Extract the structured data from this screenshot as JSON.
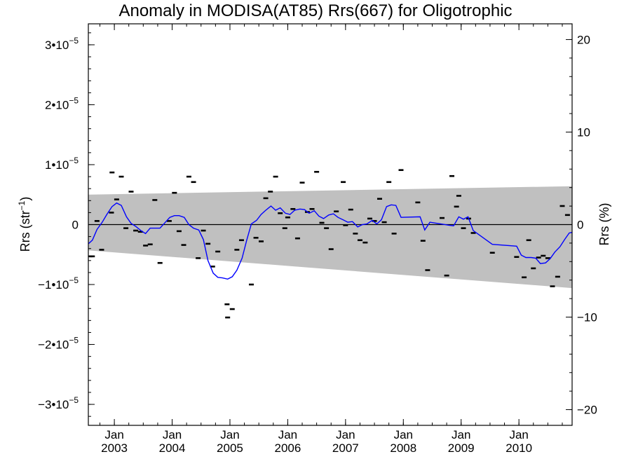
{
  "chart_data": {
    "type": "scatter",
    "title": "Anomaly in MODISA(AT85) Rrs(667) for Oligotrophic",
    "ylabel_left": "Rrs (str⁻¹)",
    "ylabel_right": "Rrs (%)",
    "ylim_left": [
      -3.35e-05,
      3.35e-05
    ],
    "ylim_right": [
      -21.7,
      21.7
    ],
    "xlim": [
      2002.55,
      2010.92
    ],
    "grid": false,
    "y_ticks_left": [
      {
        "value": 3e-05,
        "mantissa": "3",
        "sign": ""
      },
      {
        "value": 2e-05,
        "mantissa": "2",
        "sign": ""
      },
      {
        "value": 1e-05,
        "mantissa": "1",
        "sign": ""
      },
      {
        "value": 0,
        "mantissa": "0",
        "sign": "",
        "plain": true
      },
      {
        "value": -1e-05,
        "mantissa": "1",
        "sign": "−"
      },
      {
        "value": -2e-05,
        "mantissa": "2",
        "sign": "−"
      },
      {
        "value": -3e-05,
        "mantissa": "3",
        "sign": "−"
      }
    ],
    "y_tick_base": "•10",
    "y_tick_exp": "−5",
    "y_ticks_right": [
      {
        "value": 20,
        "label": "20"
      },
      {
        "value": 10,
        "label": "10"
      },
      {
        "value": 0,
        "label": "0"
      },
      {
        "value": -10,
        "label": "−10"
      },
      {
        "value": -20,
        "label": "−20"
      }
    ],
    "x_ticks": [
      {
        "value": 2003.0,
        "month": "Jan",
        "year": "2003"
      },
      {
        "value": 2004.0,
        "month": "Jan",
        "year": "2004"
      },
      {
        "value": 2005.0,
        "month": "Jan",
        "year": "2005"
      },
      {
        "value": 2006.0,
        "month": "Jan",
        "year": "2006"
      },
      {
        "value": 2007.0,
        "month": "Jan",
        "year": "2007"
      },
      {
        "value": 2008.0,
        "month": "Jan",
        "year": "2008"
      },
      {
        "value": 2009.0,
        "month": "Jan",
        "year": "2009"
      },
      {
        "value": 2010.0,
        "month": "Jan",
        "year": "2010"
      }
    ],
    "band": {
      "x": [
        2002.55,
        2010.92
      ],
      "upper": [
        5e-06,
        6.4e-06
      ],
      "lower": [
        -4.3e-06,
        -1.06e-05
      ],
      "color": "#c0c0c0"
    },
    "points": [
      [
        2002.58,
        -5.3e-06
      ],
      [
        2002.62,
        -5.3e-06
      ],
      [
        2002.7,
        6e-07
      ],
      [
        2002.78,
        -4.2e-06
      ],
      [
        2002.95,
        2e-06
      ],
      [
        2002.96,
        8.7e-06
      ],
      [
        2003.04,
        4.2e-06
      ],
      [
        2003.12,
        8e-06
      ],
      [
        2003.2,
        -6e-07
      ],
      [
        2003.29,
        5.5e-06
      ],
      [
        2003.37,
        -1e-06
      ],
      [
        2003.45,
        -1.2e-06
      ],
      [
        2003.54,
        -3.5e-06
      ],
      [
        2003.62,
        -3.3e-06
      ],
      [
        2003.7,
        4.1e-06
      ],
      [
        2003.79,
        -6.4e-06
      ],
      [
        2003.95,
        6e-07
      ],
      [
        2004.04,
        5.3e-06
      ],
      [
        2004.12,
        -1.1e-06
      ],
      [
        2004.2,
        -3.4e-06
      ],
      [
        2004.29,
        8e-06
      ],
      [
        2004.37,
        7.1e-06
      ],
      [
        2004.45,
        -5.6e-06
      ],
      [
        2004.54,
        -1e-06
      ],
      [
        2004.62,
        -3.2e-06
      ],
      [
        2004.7,
        -7e-06
      ],
      [
        2004.79,
        -4.5e-06
      ],
      [
        2004.95,
        -1.33e-05
      ],
      [
        2004.96,
        -1.55e-05
      ],
      [
        2005.04,
        -1.41e-05
      ],
      [
        2005.12,
        -4.2e-06
      ],
      [
        2005.2,
        -2.6e-06
      ],
      [
        2005.37,
        -1e-05
      ],
      [
        2005.45,
        -2.2e-06
      ],
      [
        2005.54,
        -2.8e-06
      ],
      [
        2005.62,
        4.4e-06
      ],
      [
        2005.7,
        5.5e-06
      ],
      [
        2005.79,
        8e-06
      ],
      [
        2005.87,
        1.9e-06
      ],
      [
        2005.95,
        -6e-07
      ],
      [
        2006.0,
        1.2e-06
      ],
      [
        2006.09,
        2.6e-06
      ],
      [
        2006.17,
        -2.3e-06
      ],
      [
        2006.25,
        7e-06
      ],
      [
        2006.34,
        2.1e-06
      ],
      [
        2006.42,
        2.6e-06
      ],
      [
        2006.5,
        8.8e-06
      ],
      [
        2006.59,
        3e-07
      ],
      [
        2006.67,
        -6e-07
      ],
      [
        2006.75,
        -4.1e-06
      ],
      [
        2006.84,
        2.2e-06
      ],
      [
        2006.96,
        7.1e-06
      ],
      [
        2007.0,
        -1e-07
      ],
      [
        2007.09,
        2.5e-06
      ],
      [
        2007.17,
        -1.5e-06
      ],
      [
        2007.25,
        -2.6e-06
      ],
      [
        2007.34,
        -3e-06
      ],
      [
        2007.42,
        1e-06
      ],
      [
        2007.5,
        6e-07
      ],
      [
        2007.59,
        4.3e-06
      ],
      [
        2007.67,
        4e-07
      ],
      [
        2007.75,
        7.1e-06
      ],
      [
        2007.84,
        -1.5e-06
      ],
      [
        2007.96,
        9.1e-06
      ],
      [
        2008.25,
        3.7e-06
      ],
      [
        2008.34,
        -2.7e-06
      ],
      [
        2008.42,
        -7.6e-06
      ],
      [
        2008.67,
        1.1e-06
      ],
      [
        2008.75,
        -8.5e-06
      ],
      [
        2008.84,
        8.1e-06
      ],
      [
        2008.92,
        3e-06
      ],
      [
        2008.96,
        4.8e-06
      ],
      [
        2009.04,
        -6e-07
      ],
      [
        2009.13,
        1e-06
      ],
      [
        2009.21,
        -1.4e-06
      ],
      [
        2009.54,
        -4.7e-06
      ],
      [
        2009.96,
        -5.4e-06
      ],
      [
        2010.09,
        -8.8e-06
      ],
      [
        2010.17,
        -2.6e-06
      ],
      [
        2010.25,
        -7.3e-06
      ],
      [
        2010.34,
        -5.5e-06
      ],
      [
        2010.42,
        -5.2e-06
      ],
      [
        2010.5,
        -5.6e-06
      ],
      [
        2010.58,
        -1.03e-05
      ],
      [
        2010.67,
        -8.7e-06
      ],
      [
        2010.75,
        3.1e-06
      ],
      [
        2010.84,
        1.6e-06
      ]
    ],
    "line": {
      "color": "#0000ff",
      "x": [
        2002.55,
        2002.62,
        2002.7,
        2002.79,
        2002.87,
        2002.96,
        2003.04,
        2003.12,
        2003.21,
        2003.29,
        2003.37,
        2003.46,
        2003.54,
        2003.62,
        2003.71,
        2003.79,
        2003.96,
        2004.04,
        2004.12,
        2004.21,
        2004.29,
        2004.37,
        2004.46,
        2004.54,
        2004.62,
        2004.71,
        2004.79,
        2004.87,
        2004.96,
        2005.04,
        2005.12,
        2005.21,
        2005.29,
        2005.37,
        2005.46,
        2005.54,
        2005.62,
        2005.71,
        2005.79,
        2005.87,
        2005.96,
        2006.04,
        2006.12,
        2006.21,
        2006.29,
        2006.37,
        2006.46,
        2006.54,
        2006.62,
        2006.71,
        2006.79,
        2006.87,
        2006.96,
        2007.04,
        2007.12,
        2007.21,
        2007.29,
        2007.37,
        2007.46,
        2007.54,
        2007.62,
        2007.71,
        2007.79,
        2007.87,
        2007.96,
        2008.29,
        2008.37,
        2008.46,
        2008.79,
        2008.87,
        2008.96,
        2009.04,
        2009.12,
        2009.21,
        2009.54,
        2009.96,
        2010.04,
        2010.12,
        2010.21,
        2010.29,
        2010.37,
        2010.46,
        2010.54,
        2010.62,
        2010.71,
        2010.79,
        2010.87,
        2010.92
      ],
      "y": [
        -3.2e-06,
        -2.6e-06,
        -8e-07,
        4e-07,
        1.7e-06,
        3e-06,
        3.6e-06,
        3.2e-06,
        1.3e-06,
        2e-07,
        -3e-07,
        -1e-06,
        -1.5e-06,
        -6e-07,
        -6e-07,
        -6e-07,
        1.2e-06,
        1.5e-06,
        1.5e-06,
        1.2e-06,
        0.0,
        -6e-07,
        -9e-07,
        -2.5e-06,
        -6e-06,
        -8.1e-06,
        -8.8e-06,
        -8.9e-06,
        -9.1e-06,
        -8.7e-06,
        -7.6e-06,
        -5.6e-06,
        -2.6e-06,
        1e-07,
        7e-07,
        1.7e-06,
        2.4e-06,
        3.1e-06,
        2.4e-06,
        2.8e-06,
        1.9e-06,
        1.7e-06,
        2.4e-06,
        2.6e-06,
        2.5e-06,
        1.9e-06,
        2.3e-06,
        1.4e-06,
        1e-06,
        1.6e-06,
        1.8e-06,
        1.2e-06,
        8e-07,
        4e-07,
        5e-07,
        -4e-07,
        0.0,
        1e-07,
        7e-07,
        1e-07,
        8e-07,
        3e-06,
        3.3e-06,
        3.2e-06,
        1.2e-06,
        1.3e-06,
        -9e-07,
        4e-07,
        -1e-07,
        -2e-07,
        1.3e-06,
        9e-07,
        1.3e-06,
        -1e-06,
        -3.3e-06,
        -3.6e-06,
        -5.1e-06,
        -5.5e-06,
        -5.5e-06,
        -5.6e-06,
        -6.5e-06,
        -6.4e-06,
        -5.7e-06,
        -4.6e-06,
        -3.7e-06,
        -2.5e-06,
        -1.4e-06,
        -1.3e-06
      ]
    }
  }
}
